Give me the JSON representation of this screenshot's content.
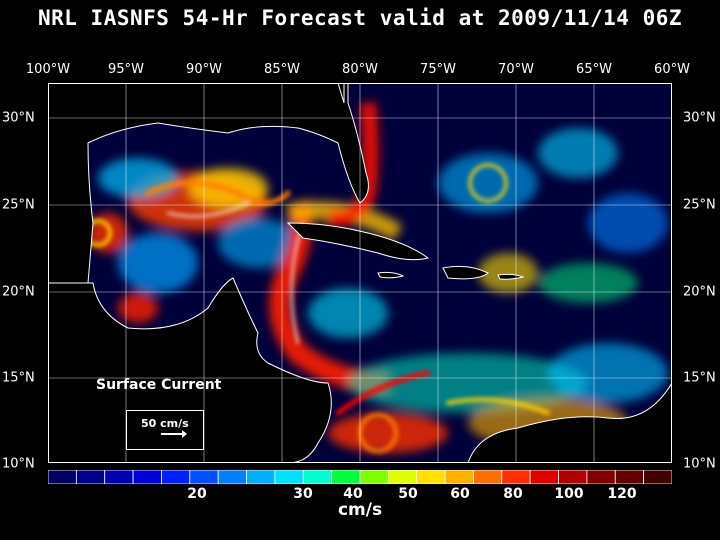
{
  "title": "NRL IASNFS  54-Hr Forecast valid at 2009/11/14 06Z",
  "lon_labels": [
    "100°W",
    "95°W",
    "90°W",
    "85°W",
    "80°W",
    "75°W",
    "70°W",
    "65°W",
    "60°W"
  ],
  "lat_labels": [
    "30°N",
    "25°N",
    "20°N",
    "15°N",
    "10°N"
  ],
  "colorbar": {
    "labels": [
      "20",
      "30",
      "40",
      "50",
      "60",
      "80",
      "100",
      "120"
    ],
    "unit": "cm/s",
    "colors": [
      "#000060",
      "#00008a",
      "#0000b4",
      "#0000dc",
      "#0020ff",
      "#0050ff",
      "#0080ff",
      "#00b0ff",
      "#00e0ff",
      "#00ffd0",
      "#00ff40",
      "#80ff00",
      "#e0ff00",
      "#ffe000",
      "#ffb000",
      "#ff7000",
      "#ff3000",
      "#e00000",
      "#b00000",
      "#800000",
      "#600000",
      "#400000"
    ]
  },
  "legend": {
    "title": "Surface Current",
    "vector_label": "50 cm/s"
  },
  "colors": {
    "land": "#000000",
    "coast": "#ffffff",
    "ocean_bg": "#00003a",
    "grid": "#ffffff"
  }
}
